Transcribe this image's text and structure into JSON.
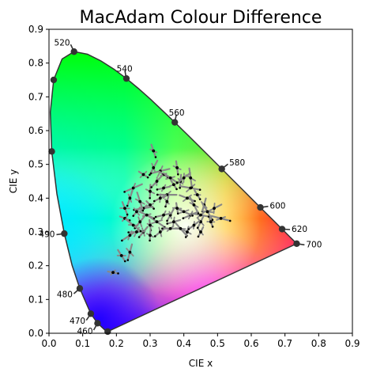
{
  "chart_data": {
    "type": "scatter",
    "title": "MacAdam Colour Difference",
    "xlabel": "CIE x",
    "ylabel": "CIE y",
    "xlim": [
      0,
      0.9
    ],
    "ylim": [
      0,
      0.9
    ],
    "x_ticks": [
      "0.0",
      "0.1",
      "0.2",
      "0.3",
      "0.4",
      "0.5",
      "0.6",
      "0.7",
      "0.8",
      "0.9"
    ],
    "y_ticks": [
      "0.0",
      "0.1",
      "0.2",
      "0.3",
      "0.4",
      "0.5",
      "0.6",
      "0.7",
      "0.8",
      "0.9"
    ],
    "grid": false,
    "colors": {
      "locus_outline": "#333333",
      "marker": "#333333",
      "ellipse_line": "#888888",
      "ellipse_point": "#000000"
    },
    "spectral_locus": [
      [
        0.1741,
        0.005
      ],
      [
        0.1738,
        0.0049
      ],
      [
        0.1666,
        0.0089
      ],
      [
        0.144,
        0.0297
      ],
      [
        0.1241,
        0.0578
      ],
      [
        0.0913,
        0.1327
      ],
      [
        0.0687,
        0.2007
      ],
      [
        0.0454,
        0.295
      ],
      [
        0.0235,
        0.4127
      ],
      [
        0.0082,
        0.5384
      ],
      [
        0.0039,
        0.6548
      ],
      [
        0.0139,
        0.7502
      ],
      [
        0.0389,
        0.812
      ],
      [
        0.0743,
        0.8338
      ],
      [
        0.1142,
        0.8262
      ],
      [
        0.1547,
        0.8059
      ],
      [
        0.1929,
        0.7816
      ],
      [
        0.2296,
        0.7543
      ],
      [
        0.2658,
        0.7243
      ],
      [
        0.3016,
        0.6923
      ],
      [
        0.3373,
        0.6589
      ],
      [
        0.3731,
        0.6245
      ],
      [
        0.4087,
        0.5896
      ],
      [
        0.4441,
        0.5547
      ],
      [
        0.4788,
        0.5202
      ],
      [
        0.5125,
        0.4866
      ],
      [
        0.5448,
        0.4544
      ],
      [
        0.5752,
        0.4242
      ],
      [
        0.6029,
        0.3965
      ],
      [
        0.627,
        0.3725
      ],
      [
        0.6482,
        0.3514
      ],
      [
        0.6658,
        0.334
      ],
      [
        0.6801,
        0.3197
      ],
      [
        0.6915,
        0.3083
      ],
      [
        0.7006,
        0.2993
      ],
      [
        0.7079,
        0.292
      ],
      [
        0.714,
        0.2859
      ],
      [
        0.719,
        0.2809
      ],
      [
        0.723,
        0.277
      ],
      [
        0.726,
        0.274
      ],
      [
        0.7283,
        0.2717
      ],
      [
        0.73,
        0.27
      ],
      [
        0.7347,
        0.2653
      ]
    ],
    "wavelength_markers": [
      {
        "label": "",
        "x": 0.1741,
        "y": 0.005
      },
      {
        "label": "460",
        "x": 0.144,
        "y": 0.0297
      },
      {
        "label": "470",
        "x": 0.1241,
        "y": 0.0578
      },
      {
        "label": "480",
        "x": 0.0913,
        "y": 0.1327
      },
      {
        "label": "490",
        "x": 0.0454,
        "y": 0.295
      },
      {
        "label": "",
        "x": 0.0082,
        "y": 0.5384
      },
      {
        "label": "",
        "x": 0.0139,
        "y": 0.7502
      },
      {
        "label": "520",
        "x": 0.0743,
        "y": 0.8338
      },
      {
        "label": "540",
        "x": 0.2296,
        "y": 0.7543
      },
      {
        "label": "560",
        "x": 0.3731,
        "y": 0.6245
      },
      {
        "label": "580",
        "x": 0.5125,
        "y": 0.4866
      },
      {
        "label": "600",
        "x": 0.627,
        "y": 0.3725
      },
      {
        "label": "620",
        "x": 0.6915,
        "y": 0.3083
      },
      {
        "label": "700",
        "x": 0.7347,
        "y": 0.2653
      }
    ],
    "ellipse_centres": [
      [
        0.19,
        0.18
      ],
      [
        0.215,
        0.23
      ],
      [
        0.24,
        0.24
      ],
      [
        0.24,
        0.29
      ],
      [
        0.225,
        0.34
      ],
      [
        0.225,
        0.37
      ],
      [
        0.24,
        0.4
      ],
      [
        0.25,
        0.43
      ],
      [
        0.28,
        0.47
      ],
      [
        0.31,
        0.54
      ],
      [
        0.31,
        0.49
      ],
      [
        0.33,
        0.48
      ],
      [
        0.34,
        0.47
      ],
      [
        0.38,
        0.49
      ],
      [
        0.27,
        0.33
      ],
      [
        0.28,
        0.37
      ],
      [
        0.3,
        0.38
      ],
      [
        0.3,
        0.42
      ],
      [
        0.32,
        0.45
      ],
      [
        0.35,
        0.41
      ],
      [
        0.37,
        0.44
      ],
      [
        0.39,
        0.45
      ],
      [
        0.4,
        0.46
      ],
      [
        0.42,
        0.43
      ],
      [
        0.44,
        0.41
      ],
      [
        0.46,
        0.38
      ],
      [
        0.49,
        0.37
      ],
      [
        0.51,
        0.34
      ],
      [
        0.48,
        0.33
      ],
      [
        0.45,
        0.33
      ],
      [
        0.42,
        0.35
      ],
      [
        0.4,
        0.36
      ],
      [
        0.38,
        0.37
      ],
      [
        0.36,
        0.35
      ],
      [
        0.34,
        0.35
      ],
      [
        0.32,
        0.33
      ],
      [
        0.3,
        0.32
      ],
      [
        0.28,
        0.3
      ],
      [
        0.26,
        0.3
      ],
      [
        0.25,
        0.32
      ],
      [
        0.3,
        0.29
      ],
      [
        0.33,
        0.3
      ],
      [
        0.36,
        0.31
      ],
      [
        0.39,
        0.31
      ],
      [
        0.41,
        0.3
      ],
      [
        0.43,
        0.32
      ],
      [
        0.45,
        0.35
      ],
      [
        0.47,
        0.36
      ],
      [
        0.35,
        0.39
      ],
      [
        0.33,
        0.4
      ],
      [
        0.41,
        0.4
      ],
      [
        0.43,
        0.38
      ],
      [
        0.45,
        0.3
      ],
      [
        0.37,
        0.33
      ],
      [
        0.29,
        0.35
      ],
      [
        0.27,
        0.39
      ],
      [
        0.26,
        0.36
      ],
      [
        0.34,
        0.43
      ],
      [
        0.36,
        0.46
      ],
      [
        0.42,
        0.46
      ]
    ]
  }
}
